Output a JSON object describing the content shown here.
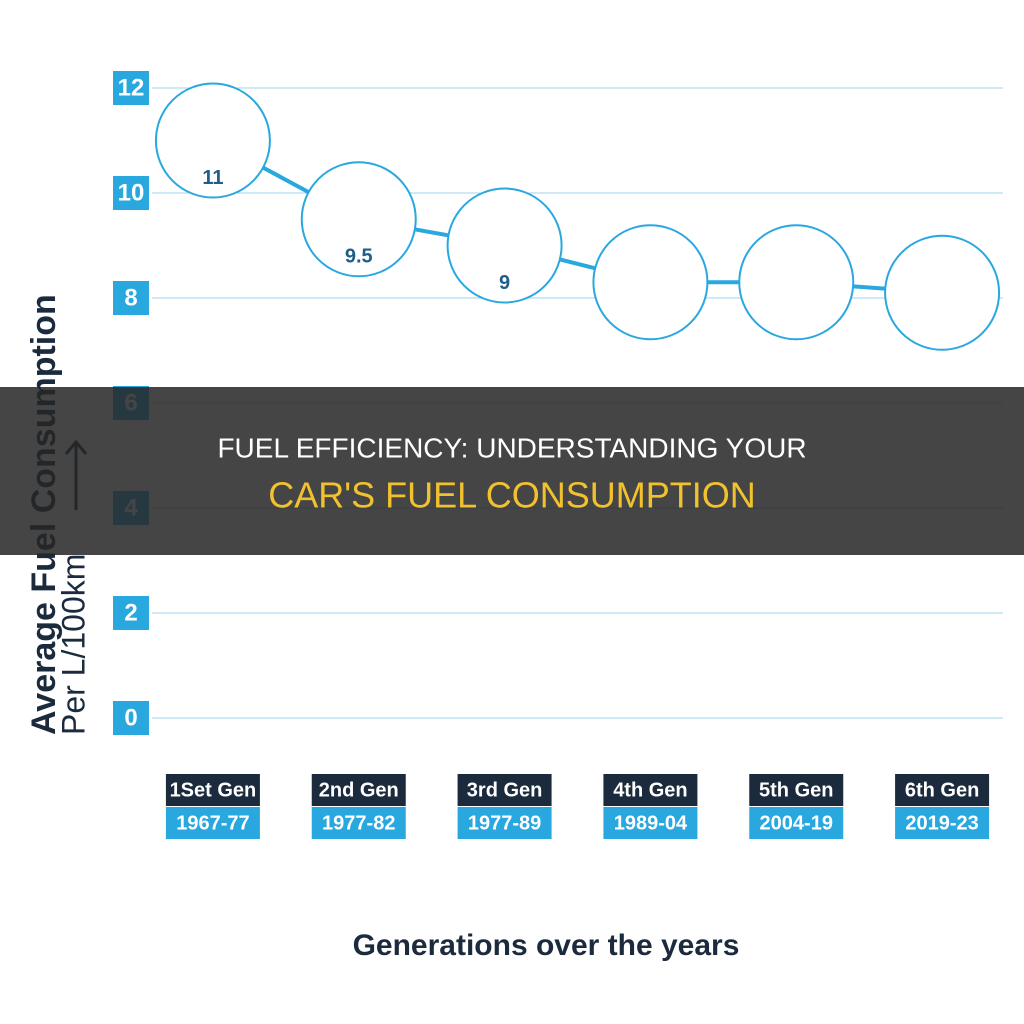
{
  "chart_data": {
    "type": "line",
    "categories": [
      [
        "1Set Gen",
        "1967-77"
      ],
      [
        "2nd Gen",
        "1977-82"
      ],
      [
        "3rd Gen",
        "1977-89"
      ],
      [
        "4th Gen",
        "1989-04"
      ],
      [
        "5th Gen",
        "2004-19"
      ],
      [
        "6th Gen",
        "2019-23"
      ]
    ],
    "values": [
      11,
      9.5,
      9,
      8.3,
      8.3,
      8.1
    ],
    "value_labels": [
      "11",
      "9.5",
      "9",
      null,
      null,
      null
    ],
    "color": "#29a8e0",
    "ylim": [
      0,
      12
    ],
    "yticks": [
      0,
      2,
      4,
      6,
      8,
      10,
      12
    ],
    "grid": true,
    "y_label": "Average Fuel Consumption",
    "y_unit": "Per L/100km",
    "x_label": "Generations over the years"
  },
  "banner": {
    "line1": "FUEL EFFICIENCY: UNDERSTANDING YOUR",
    "line2": "CAR'S FUEL CONSUMPTION"
  }
}
